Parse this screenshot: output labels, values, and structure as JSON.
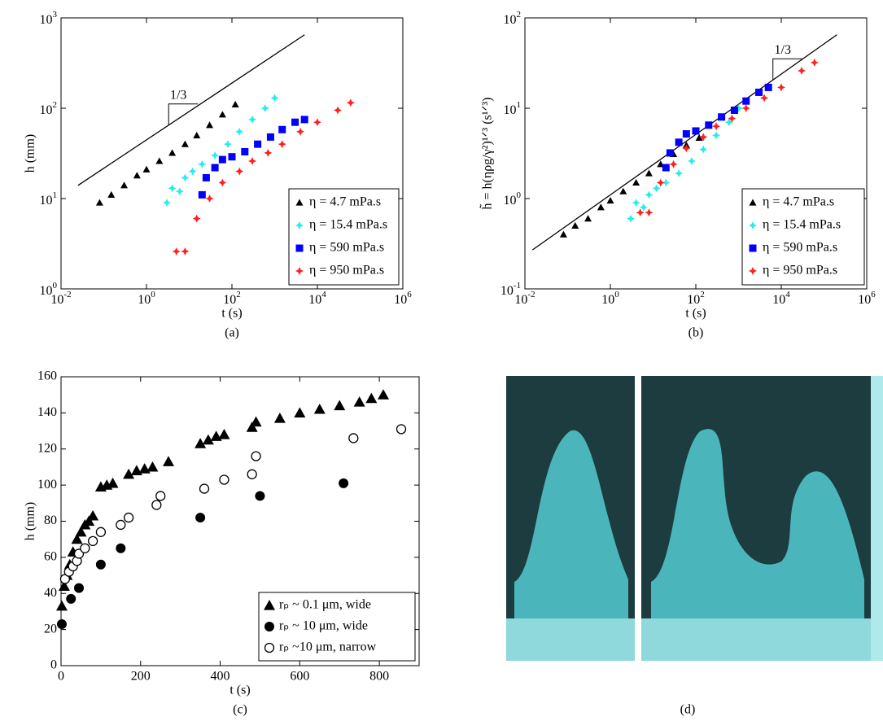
{
  "chart_data": [
    {
      "type": "scatter",
      "caption": "(a)",
      "x_label": "t (s)",
      "y_label": "h (mm)",
      "xscale": "log",
      "yscale": "log",
      "xlim": [
        0.01,
        1000000
      ],
      "ylim": [
        1,
        1000
      ],
      "xticks": [
        {
          "value": 0.01,
          "label": "10^-2"
        },
        {
          "value": 1,
          "label": "10^0"
        },
        {
          "value": 100,
          "label": "10^2"
        },
        {
          "value": 10000,
          "label": "10^4"
        },
        {
          "value": 1000000,
          "label": "10^6"
        }
      ],
      "yticks": [
        {
          "value": 1,
          "label": "10^0"
        },
        {
          "value": 10,
          "label": "10^1"
        },
        {
          "value": 100,
          "label": "10^2"
        },
        {
          "value": 1000,
          "label": "10^3"
        }
      ],
      "legend": "lower right",
      "slope_label": "1/3",
      "reference_line": {
        "x": [
          0.025,
          5000
        ],
        "y": [
          14,
          650
        ]
      },
      "series": [
        {
          "name": "η = 4.7 mPa.s",
          "color": "#000000",
          "marker": "triangle",
          "x": [
            0.08,
            0.15,
            0.3,
            0.6,
            1,
            2,
            4,
            8,
            15,
            30,
            60,
            120
          ],
          "values": [
            9,
            11,
            14,
            18,
            21,
            26,
            32,
            40,
            50,
            65,
            85,
            110
          ]
        },
        {
          "name": "η = 15.4 mPa.s",
          "color": "#22eeee",
          "marker": "star",
          "x": [
            3,
            4,
            6,
            8,
            12,
            20,
            40,
            80,
            150,
            300,
            600,
            1000
          ],
          "values": [
            9,
            13,
            12,
            17,
            20,
            24,
            30,
            40,
            55,
            75,
            100,
            130
          ]
        },
        {
          "name": "η = 590 mPa.s",
          "color": "#0000ff",
          "marker": "square",
          "x": [
            20,
            25,
            40,
            60,
            100,
            200,
            400,
            800,
            1500,
            3000,
            5000
          ],
          "values": [
            11,
            17,
            22,
            27,
            29,
            33,
            40,
            48,
            58,
            70,
            75
          ]
        },
        {
          "name": "η = 950 mPa.s",
          "color": "#ff2020",
          "marker": "star",
          "x": [
            5,
            8,
            15,
            30,
            60,
            150,
            300,
            700,
            1500,
            4000,
            10000,
            30000,
            60000
          ],
          "values": [
            2.6,
            2.6,
            6,
            10,
            15,
            20,
            26,
            32,
            40,
            55,
            70,
            95,
            115
          ]
        }
      ]
    },
    {
      "type": "scatter",
      "caption": "(b)",
      "x_label": "t (s)",
      "y_label": "h̃ = h(ηρg/γ²)¹ᐟ³  (s¹ᐟ³)",
      "xscale": "log",
      "yscale": "log",
      "xlim": [
        0.01,
        1000000
      ],
      "ylim": [
        0.1,
        100
      ],
      "xticks": [
        {
          "value": 0.01,
          "label": "10^-2"
        },
        {
          "value": 1,
          "label": "10^0"
        },
        {
          "value": 100,
          "label": "10^2"
        },
        {
          "value": 10000,
          "label": "10^4"
        },
        {
          "value": 1000000,
          "label": "10^6"
        }
      ],
      "yticks": [
        {
          "value": 0.1,
          "label": "10^-1"
        },
        {
          "value": 1,
          "label": "10^0"
        },
        {
          "value": 10,
          "label": "10^1"
        },
        {
          "value": 100,
          "label": "10^2"
        }
      ],
      "legend": "lower right",
      "slope_label": "1/3",
      "reference_line": {
        "x": [
          0.015,
          200000
        ],
        "y": [
          0.27,
          65
        ]
      },
      "series": [
        {
          "name": "η = 4.7 mPa.s",
          "color": "#000000",
          "marker": "triangle",
          "x": [
            0.08,
            0.15,
            0.3,
            0.6,
            1,
            2,
            4,
            8,
            15,
            30,
            60,
            120
          ],
          "values": [
            0.4,
            0.5,
            0.6,
            0.8,
            0.95,
            1.2,
            1.5,
            1.9,
            2.4,
            3.1,
            3.9,
            4.7
          ]
        },
        {
          "name": "η = 15.4 mPa.s",
          "color": "#22eeee",
          "marker": "star",
          "x": [
            3,
            4,
            6,
            8,
            12,
            20,
            40,
            80,
            150,
            300,
            600,
            1000
          ],
          "values": [
            0.6,
            0.9,
            0.8,
            1.1,
            1.3,
            1.5,
            1.9,
            2.6,
            3.5,
            5,
            7,
            10
          ]
        },
        {
          "name": "η = 590 mPa.s",
          "color": "#0000ff",
          "marker": "square",
          "x": [
            20,
            25,
            40,
            60,
            100,
            200,
            400,
            800,
            1500,
            3000,
            5000
          ],
          "values": [
            2.2,
            3.2,
            4.2,
            5.2,
            5.6,
            6.5,
            8,
            9.5,
            12,
            15,
            17
          ]
        },
        {
          "name": "η = 950 mPa.s",
          "color": "#ff2020",
          "marker": "star",
          "x": [
            5,
            8,
            15,
            30,
            60,
            150,
            300,
            700,
            1500,
            4000,
            10000,
            30000,
            60000
          ],
          "values": [
            0.7,
            0.7,
            1.5,
            2.4,
            3.6,
            4.8,
            6.3,
            7.7,
            10,
            13,
            17,
            26,
            32
          ]
        }
      ]
    },
    {
      "type": "scatter",
      "caption": "(c)",
      "x_label": "t (s)",
      "y_label": "h (mm)",
      "xlim": [
        0,
        900
      ],
      "ylim": [
        0,
        160
      ],
      "xticks": [
        0,
        200,
        400,
        600,
        800
      ],
      "yticks": [
        0,
        20,
        40,
        60,
        80,
        100,
        120,
        140,
        160
      ],
      "legend": "lower right",
      "series": [
        {
          "name": "rₚ ~ 0.1 μm, wide",
          "color": "#000000",
          "marker": "triangle-big",
          "x": [
            2,
            8,
            15,
            22,
            30,
            40,
            50,
            60,
            70,
            80,
            100,
            115,
            130,
            170,
            190,
            210,
            230,
            270,
            350,
            370,
            390,
            410,
            480,
            490,
            550,
            600,
            650,
            700,
            750,
            780,
            810
          ],
          "values": [
            33,
            44,
            50,
            56,
            63,
            70,
            74,
            78,
            80,
            83,
            99,
            100,
            101,
            106,
            108,
            109,
            110,
            113,
            123,
            125,
            127,
            128,
            132,
            135,
            137,
            140,
            142,
            144,
            146,
            148,
            150
          ]
        },
        {
          "name": "rₚ ~ 10 μm, wide",
          "color": "#000000",
          "marker": "circle",
          "x": [
            2,
            25,
            45,
            100,
            150,
            350,
            500,
            710
          ],
          "values": [
            23,
            37,
            43,
            56,
            65,
            82,
            94,
            101
          ]
        },
        {
          "name": "rₚ ~10 μm, narrow",
          "color": "#000000",
          "marker": "circle-open",
          "x": [
            10,
            20,
            30,
            40,
            45,
            60,
            80,
            100,
            150,
            170,
            240,
            250,
            360,
            410,
            480,
            490,
            735,
            855
          ],
          "values": [
            48,
            52,
            55,
            58,
            62,
            65,
            69,
            74,
            78,
            82,
            89,
            94,
            98,
            103,
            106,
            116,
            126,
            131
          ]
        }
      ]
    }
  ],
  "image_panel": {
    "caption": "(d)"
  }
}
